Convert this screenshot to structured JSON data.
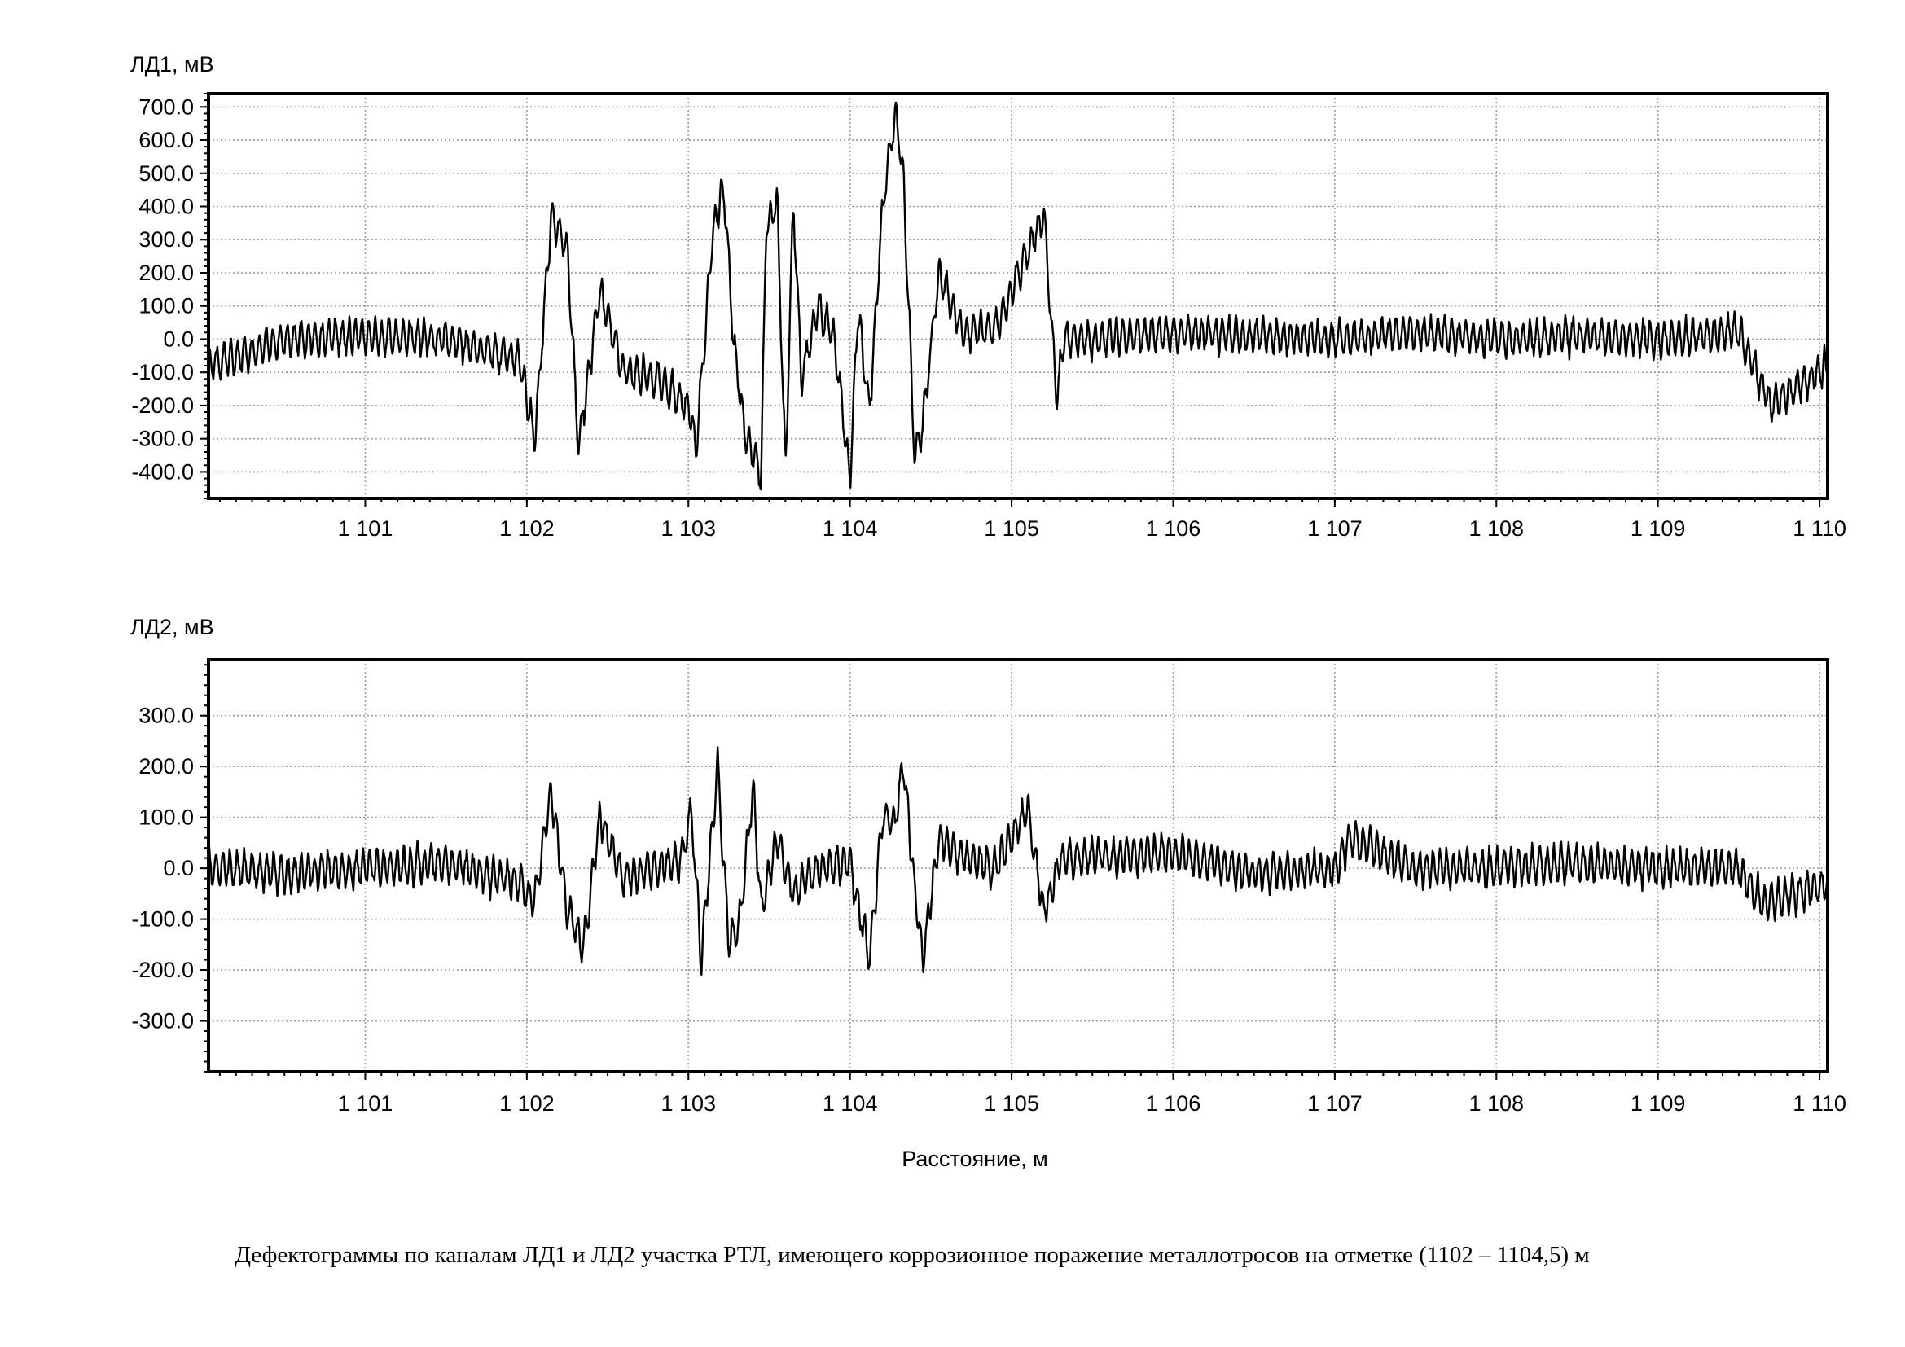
{
  "caption": "Дефектограммы  по каналам ЛД1 и ЛД2 участка РТЛ, имеющего коррозионное поражение металлотросов на отметке (1102 – 1104,5) м",
  "xlabel": "Расстояние, м",
  "chart_data": [
    {
      "type": "line",
      "title": "",
      "ylabel": "ЛД1, мВ",
      "xlabel": "",
      "xlim": [
        1100.03,
        1110.05
      ],
      "ylim": [
        -480,
        740
      ],
      "x_ticks": [
        1101,
        1102,
        1103,
        1104,
        1105,
        1106,
        1107,
        1108,
        1109,
        1110
      ],
      "x_tick_labels": [
        "1 101",
        "1 102",
        "1 103",
        "1 104",
        "1 105",
        "1 106",
        "1 107",
        "1 108",
        "1 109",
        "1 110"
      ],
      "y_ticks": [
        700,
        600,
        500,
        400,
        300,
        200,
        100,
        0,
        -100,
        -200,
        -300,
        -400
      ],
      "y_tick_labels": [
        "700.0",
        "600.0",
        "500.0",
        "400.0",
        "300.0",
        "200.0",
        "100.0",
        "0.0",
        "-100.0",
        "-200.0",
        "-300.0",
        "-400.0"
      ],
      "grid": true,
      "noise_amplitude": 55,
      "series": [
        {
          "x": [
            1100.03,
            1100.5,
            1101.0,
            1101.5,
            1101.95,
            1102.05,
            1102.15,
            1102.25,
            1102.32,
            1102.45,
            1102.6,
            1102.8,
            1103.0,
            1103.05,
            1103.15,
            1103.22,
            1103.28,
            1103.35,
            1103.45,
            1103.48,
            1103.55,
            1103.6,
            1103.65,
            1103.7,
            1103.8,
            1103.9,
            1104.0,
            1104.05,
            1104.12,
            1104.2,
            1104.28,
            1104.33,
            1104.4,
            1104.45,
            1104.55,
            1104.7,
            1104.9,
            1105.2,
            1105.28,
            1105.32,
            1105.5,
            1106.0,
            1106.5,
            1107.0,
            1107.5,
            1108.0,
            1108.5,
            1109.0,
            1109.5,
            1109.7,
            1110.05
          ],
          "y": [
            -80,
            0,
            10,
            0,
            -60,
            -300,
            370,
            280,
            -330,
            150,
            -100,
            -120,
            -200,
            -320,
            330,
            450,
            0,
            -290,
            -410,
            330,
            410,
            -400,
            420,
            -130,
            100,
            10,
            -420,
            90,
            -220,
            390,
            680,
            500,
            -360,
            -260,
            200,
            20,
            30,
            380,
            -180,
            0,
            0,
            20,
            10,
            0,
            20,
            0,
            10,
            0,
            20,
            -200,
            -80
          ]
        }
      ]
    },
    {
      "type": "line",
      "title": "",
      "ylabel": "ЛД2, мВ",
      "xlabel": "Расстояние, м",
      "xlim": [
        1100.03,
        1110.05
      ],
      "ylim": [
        -400,
        410
      ],
      "x_ticks": [
        1101,
        1102,
        1103,
        1104,
        1105,
        1106,
        1107,
        1108,
        1109,
        1110
      ],
      "x_tick_labels": [
        "1 101",
        "1 102",
        "1 103",
        "1 104",
        "1 105",
        "1 106",
        "1 107",
        "1 108",
        "1 109",
        "1 110"
      ],
      "y_ticks": [
        300,
        200,
        100,
        0,
        -100,
        -200,
        -300
      ],
      "y_tick_labels": [
        "300.0",
        "200.0",
        "100.0",
        "0.0",
        "-100.0",
        "-200.0",
        "-300.0"
      ],
      "grid": true,
      "noise_amplitude": 38,
      "series": [
        {
          "x": [
            1100.03,
            1100.5,
            1101.0,
            1101.5,
            1101.95,
            1102.05,
            1102.15,
            1102.25,
            1102.35,
            1102.45,
            1102.6,
            1102.8,
            1102.95,
            1103.02,
            1103.08,
            1103.18,
            1103.25,
            1103.32,
            1103.4,
            1103.45,
            1103.55,
            1103.65,
            1103.8,
            1104.0,
            1104.12,
            1104.2,
            1104.28,
            1104.33,
            1104.4,
            1104.45,
            1104.55,
            1104.7,
            1104.9,
            1105.1,
            1105.2,
            1105.3,
            1106.0,
            1106.5,
            1107.0,
            1107.1,
            1107.5,
            1108.0,
            1108.5,
            1109.0,
            1109.5,
            1109.65,
            1110.05
          ],
          "y": [
            0,
            -10,
            0,
            10,
            -30,
            -60,
            150,
            -80,
            -160,
            100,
            -20,
            0,
            10,
            110,
            -180,
            200,
            -150,
            -100,
            160,
            -80,
            60,
            -50,
            0,
            10,
            -180,
            100,
            90,
            210,
            -40,
            -180,
            60,
            20,
            0,
            120,
            -90,
            20,
            30,
            -10,
            0,
            60,
            0,
            0,
            10,
            0,
            0,
            -70,
            -30
          ]
        }
      ]
    }
  ]
}
